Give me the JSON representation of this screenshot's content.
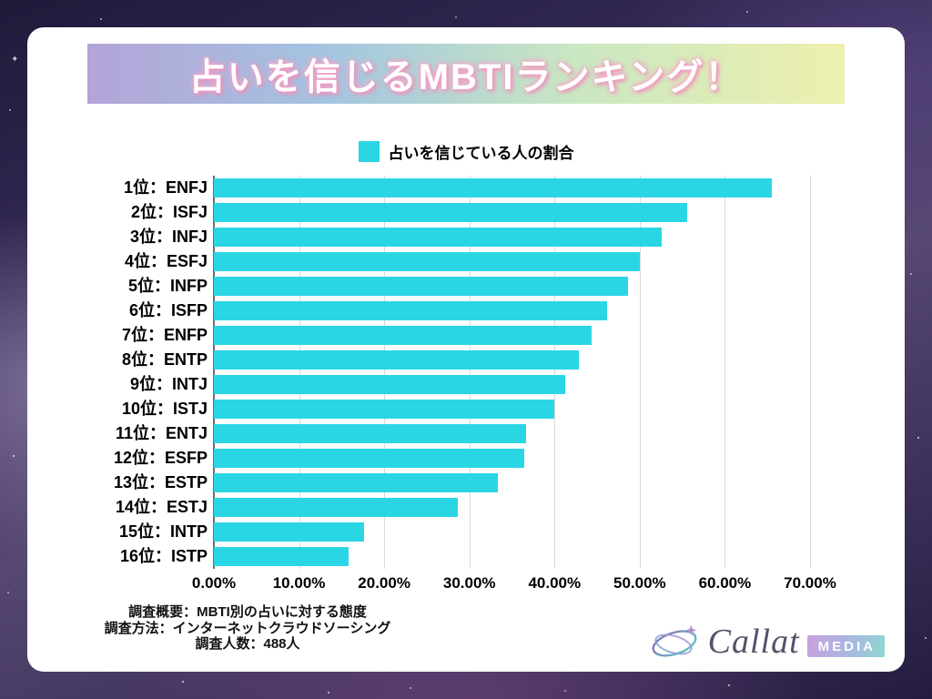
{
  "header": {
    "title": "占いを信じるMBTIランキング！"
  },
  "legend": {
    "label": "占いを信じている人の割合",
    "color": "#2bd6e4"
  },
  "chart_data": {
    "type": "bar",
    "orientation": "horizontal",
    "title": "占いを信じるMBTIランキング！",
    "legend_entries": [
      "占いを信じている人の割合"
    ],
    "categories": [
      "1位：ENFJ",
      "2位：ISFJ",
      "3位：INFJ",
      "4位：ESFJ",
      "5位：INFP",
      "6位：ISFP",
      "7位：ENFP",
      "8位：ENTP",
      "9位：INTJ",
      "10位：ISTJ",
      "11位：ENTJ",
      "12位：ESFP",
      "13位：ESTP",
      "14位：ESTJ",
      "15位：INTP",
      "16位：ISTP"
    ],
    "values": [
      65.5,
      55.6,
      52.6,
      50.0,
      48.6,
      46.2,
      44.4,
      42.9,
      41.2,
      40.0,
      36.7,
      36.4,
      33.3,
      28.6,
      17.6,
      15.8
    ],
    "xlabel": "",
    "ylabel": "",
    "xlim": [
      0,
      70
    ],
    "x_ticks": [
      "0.00%",
      "10.00%",
      "20.00%",
      "30.00%",
      "40.00%",
      "50.00%",
      "60.00%",
      "70.00%"
    ],
    "x_tick_values": [
      0,
      10,
      20,
      30,
      40,
      50,
      60,
      70
    ],
    "bar_color": "#2bd6e4",
    "grid": true,
    "legend_position": "top"
  },
  "footer": {
    "line1": "調査概要：MBTI別の占いに対する態度",
    "line2": "調査方法：インターネットクラウドソーシング",
    "line3": "調査人数：488人"
  },
  "logo": {
    "brand": "Callat",
    "badge": "MEDIA"
  }
}
